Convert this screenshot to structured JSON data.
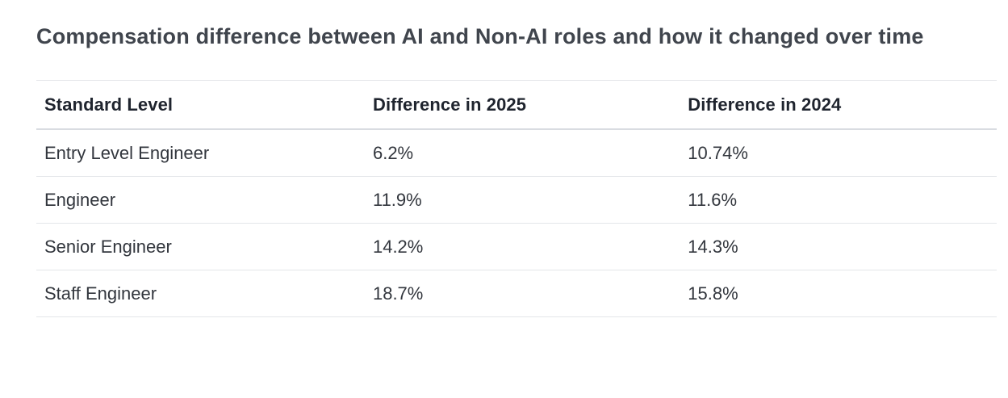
{
  "page": {
    "title": "Compensation difference between AI and Non-AI roles and how it changed over time"
  },
  "chart_data": {
    "type": "table",
    "title": "Compensation difference between AI and Non-AI roles and how it changed over time",
    "columns": [
      "Standard Level",
      "Difference in 2025",
      "Difference in 2024"
    ],
    "rows": [
      [
        "Entry Level Engineer",
        "6.2%",
        "10.74%"
      ],
      [
        "Engineer",
        "11.9%",
        "11.6%"
      ],
      [
        "Senior Engineer",
        "14.2%",
        "14.3%"
      ],
      [
        "Staff Engineer",
        "18.7%",
        "15.8%"
      ]
    ],
    "categories": [
      "Entry Level Engineer",
      "Engineer",
      "Senior Engineer",
      "Staff Engineer"
    ],
    "series": [
      {
        "name": "Difference in 2025",
        "values": [
          6.2,
          11.9,
          14.2,
          18.7
        ]
      },
      {
        "name": "Difference in 2024",
        "values": [
          10.74,
          11.6,
          14.3,
          15.8
        ]
      }
    ]
  },
  "colors": {
    "background": "#ffffff",
    "title_text": "#40454d",
    "header_text": "#1f242e",
    "body_text": "#32363d",
    "row_divider": "#e4e6e9",
    "header_divider": "#d9dce1"
  }
}
